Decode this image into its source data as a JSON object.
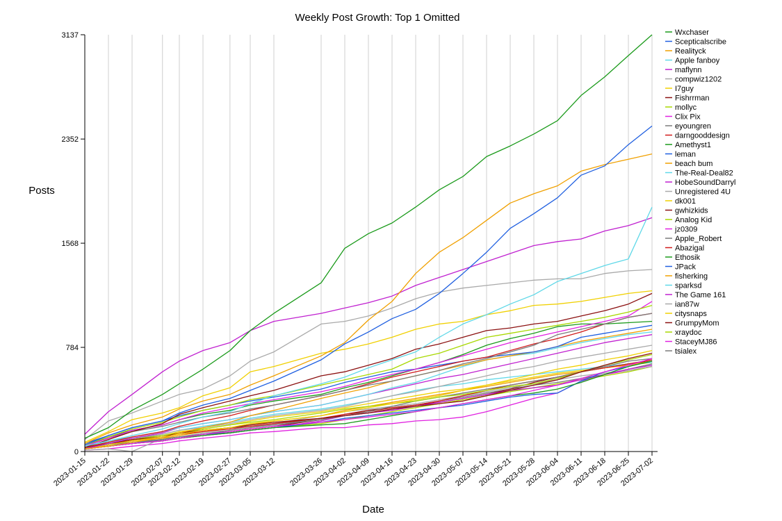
{
  "chart_data": {
    "type": "line",
    "title": "Weekly Post Growth: Top 1 Omitted",
    "xlabel": "Date",
    "ylabel": "Posts",
    "ylim": [
      0,
      3137
    ],
    "yticks": [
      0,
      784,
      1568,
      2352,
      3137
    ],
    "x": [
      "2023-01-15",
      "2023-01-22",
      "2023-01-29",
      "2023-02-07",
      "2023-02-12",
      "2023-02-19",
      "2023-02-27",
      "2023-03-05",
      "2023-03-12",
      "2023-03-26",
      "2023-04-02",
      "2023-04-09",
      "2023-04-16",
      "2023-04-23",
      "2023-04-30",
      "2023-05-07",
      "2023-05-14",
      "2023-05-21",
      "2023-05-28",
      "2023-06-04",
      "2023-06-11",
      "2023-06-18",
      "2023-06-25",
      "2023-07-02"
    ],
    "grid": "vertical",
    "legend_position": "right",
    "series": [
      {
        "name": "Wxchaser",
        "color": "#1a9a1a",
        "values": [
          100,
          180,
          310,
          430,
          510,
          620,
          760,
          910,
          1040,
          1270,
          1530,
          1640,
          1720,
          1840,
          1970,
          2070,
          2220,
          2300,
          2390,
          2490,
          2680,
          2820,
          2980,
          3137
        ]
      },
      {
        "name": "Scepticalscribe",
        "color": "#1f5fe0",
        "values": [
          50,
          120,
          180,
          230,
          290,
          350,
          400,
          460,
          530,
          690,
          810,
          900,
          1000,
          1070,
          1190,
          1340,
          1500,
          1680,
          1790,
          1910,
          2080,
          2150,
          2310,
          2450
        ]
      },
      {
        "name": "Realityck",
        "color": "#f0a000",
        "values": [
          60,
          140,
          200,
          260,
          320,
          380,
          430,
          500,
          570,
          720,
          820,
          990,
          1130,
          1340,
          1500,
          1610,
          1740,
          1870,
          1940,
          2000,
          2110,
          2160,
          2200,
          2240
        ]
      },
      {
        "name": "Apple fanboy",
        "color": "#5fd8e8",
        "values": [
          40,
          80,
          120,
          170,
          210,
          260,
          300,
          360,
          420,
          510,
          560,
          630,
          690,
          750,
          860,
          960,
          1030,
          1110,
          1180,
          1280,
          1340,
          1400,
          1450,
          1840
        ]
      },
      {
        "name": "maflynn",
        "color": "#c020d0",
        "values": [
          130,
          300,
          430,
          600,
          680,
          760,
          820,
          910,
          980,
          1040,
          1080,
          1120,
          1170,
          1250,
          1310,
          1370,
          1430,
          1490,
          1550,
          1580,
          1600,
          1660,
          1700,
          1760
        ]
      },
      {
        "name": "compwiz1202",
        "color": "#a9a9a9",
        "values": [
          90,
          230,
          290,
          380,
          430,
          470,
          570,
          680,
          750,
          960,
          980,
          1020,
          1080,
          1150,
          1200,
          1230,
          1250,
          1270,
          1290,
          1300,
          1300,
          1340,
          1360,
          1370
        ]
      },
      {
        "name": "I7guy",
        "color": "#f0d000",
        "values": [
          70,
          150,
          240,
          290,
          330,
          420,
          480,
          600,
          640,
          740,
          770,
          810,
          860,
          920,
          960,
          980,
          1030,
          1060,
          1100,
          1110,
          1130,
          1160,
          1190,
          1210
        ]
      },
      {
        "name": "Fishrrman",
        "color": "#8b1010",
        "values": [
          30,
          90,
          150,
          210,
          280,
          330,
          380,
          420,
          460,
          570,
          600,
          650,
          700,
          770,
          810,
          860,
          910,
          930,
          960,
          980,
          1020,
          1060,
          1110,
          1190
        ]
      },
      {
        "name": "mollyc",
        "color": "#a8d800",
        "values": [
          50,
          110,
          170,
          220,
          260,
          310,
          350,
          390,
          420,
          500,
          540,
          580,
          620,
          700,
          740,
          800,
          860,
          890,
          920,
          950,
          980,
          1010,
          1050,
          1100
        ]
      },
      {
        "name": "Clix Pix",
        "color": "#e020e0",
        "values": [
          40,
          100,
          160,
          200,
          240,
          290,
          330,
          360,
          390,
          450,
          490,
          540,
          580,
          620,
          670,
          720,
          770,
          820,
          860,
          900,
          940,
          980,
          1020,
          1130
        ]
      },
      {
        "name": "eyoungren",
        "color": "#7a7a7a",
        "values": [
          50,
          100,
          150,
          190,
          220,
          260,
          290,
          320,
          350,
          420,
          460,
          500,
          530,
          570,
          610,
          660,
          700,
          750,
          800,
          880,
          920,
          960,
          1010,
          1040
        ]
      },
      {
        "name": "darngooddesign",
        "color": "#d01a1a",
        "values": [
          30,
          70,
          110,
          150,
          190,
          230,
          270,
          310,
          350,
          420,
          460,
          510,
          560,
          600,
          640,
          680,
          710,
          760,
          810,
          850,
          900,
          960,
          1010,
          1040
        ]
      },
      {
        "name": "Amethyst1",
        "color": "#1a9a1a",
        "values": [
          50,
          110,
          160,
          200,
          240,
          280,
          310,
          350,
          380,
          430,
          480,
          520,
          570,
          620,
          670,
          730,
          800,
          850,
          890,
          940,
          960,
          960,
          970,
          980
        ]
      },
      {
        "name": "leman",
        "color": "#1f5fe0",
        "values": [
          60,
          120,
          180,
          230,
          270,
          310,
          350,
          380,
          410,
          470,
          520,
          560,
          600,
          620,
          650,
          680,
          710,
          730,
          750,
          790,
          860,
          890,
          920,
          950
        ]
      },
      {
        "name": "beach bum",
        "color": "#f0a000",
        "values": [
          20,
          40,
          70,
          100,
          140,
          180,
          220,
          270,
          310,
          400,
          440,
          480,
          530,
          570,
          610,
          650,
          690,
          720,
          750,
          790,
          830,
          860,
          890,
          920
        ]
      },
      {
        "name": "The-Real-Deal82",
        "color": "#5fd8e8",
        "values": [
          40,
          80,
          110,
          150,
          180,
          210,
          240,
          270,
          300,
          350,
          390,
          430,
          480,
          520,
          580,
          640,
          690,
          720,
          740,
          780,
          820,
          850,
          880,
          900
        ]
      },
      {
        "name": "HobeSoundDarryl",
        "color": "#c020d0",
        "values": [
          20,
          60,
          100,
          140,
          180,
          210,
          240,
          270,
          300,
          350,
          390,
          430,
          470,
          510,
          550,
          580,
          620,
          660,
          700,
          740,
          780,
          820,
          850,
          880
        ]
      },
      {
        "name": "Unregistered 4U",
        "color": "#a9a9a9",
        "values": [
          30,
          70,
          100,
          130,
          160,
          180,
          210,
          240,
          270,
          310,
          340,
          380,
          420,
          450,
          490,
          530,
          570,
          610,
          640,
          680,
          710,
          740,
          770,
          800
        ]
      },
      {
        "name": "dk001",
        "color": "#f0d000",
        "values": [
          20,
          50,
          80,
          110,
          130,
          160,
          180,
          210,
          230,
          270,
          300,
          330,
          360,
          390,
          420,
          460,
          500,
          540,
          580,
          620,
          650,
          690,
          720,
          760
        ]
      },
      {
        "name": "gwhizkids",
        "color": "#8b1010",
        "values": [
          30,
          60,
          90,
          110,
          140,
          160,
          180,
          200,
          220,
          250,
          270,
          290,
          320,
          340,
          360,
          380,
          420,
          460,
          500,
          540,
          600,
          650,
          700,
          740
        ]
      },
      {
        "name": "Analog Kid",
        "color": "#a8d800",
        "values": [
          30,
          60,
          90,
          120,
          140,
          170,
          200,
          220,
          240,
          290,
          320,
          340,
          360,
          380,
          410,
          430,
          460,
          490,
          510,
          550,
          600,
          650,
          690,
          730
        ]
      },
      {
        "name": "jz0309",
        "color": "#e020e0",
        "values": [
          20,
          40,
          60,
          80,
          100,
          130,
          150,
          170,
          190,
          220,
          240,
          260,
          280,
          300,
          330,
          360,
          390,
          420,
          460,
          500,
          550,
          600,
          650,
          700
        ]
      },
      {
        "name": "Apple_Robert",
        "color": "#7a7a7a",
        "values": [
          20,
          40,
          60,
          90,
          110,
          130,
          160,
          180,
          200,
          240,
          270,
          300,
          340,
          380,
          410,
          440,
          470,
          500,
          530,
          560,
          600,
          640,
          680,
          700
        ]
      },
      {
        "name": "Abazigal",
        "color": "#d01a1a",
        "values": [
          30,
          60,
          80,
          110,
          130,
          150,
          170,
          190,
          210,
          250,
          280,
          300,
          330,
          350,
          380,
          420,
          460,
          500,
          530,
          560,
          600,
          630,
          660,
          690
        ]
      },
      {
        "name": "Ethosik",
        "color": "#1a9a1a",
        "values": [
          20,
          40,
          60,
          80,
          100,
          120,
          140,
          160,
          180,
          200,
          210,
          240,
          270,
          300,
          330,
          360,
          390,
          420,
          440,
          470,
          520,
          580,
          640,
          680
        ]
      },
      {
        "name": "JPack",
        "color": "#1f5fe0",
        "values": [
          30,
          50,
          70,
          90,
          110,
          130,
          140,
          160,
          180,
          220,
          250,
          270,
          290,
          310,
          330,
          350,
          380,
          410,
          430,
          440,
          530,
          600,
          640,
          680
        ]
      },
      {
        "name": "fisherking",
        "color": "#f0a000",
        "values": [
          20,
          50,
          80,
          100,
          120,
          150,
          180,
          200,
          230,
          270,
          310,
          340,
          370,
          400,
          430,
          460,
          490,
          520,
          550,
          580,
          600,
          630,
          650,
          680
        ]
      },
      {
        "name": "sparksd",
        "color": "#5fd8e8",
        "values": [
          40,
          70,
          100,
          130,
          160,
          190,
          220,
          250,
          280,
          320,
          350,
          380,
          420,
          460,
          490,
          510,
          540,
          560,
          580,
          600,
          620,
          640,
          660,
          670
        ]
      },
      {
        "name": "The Game 161",
        "color": "#c020d0",
        "values": [
          20,
          40,
          60,
          80,
          100,
          120,
          140,
          160,
          180,
          230,
          270,
          290,
          310,
          340,
          370,
          400,
          430,
          460,
          480,
          500,
          540,
          580,
          620,
          650
        ]
      },
      {
        "name": "ian87w",
        "color": "#a9a9a9",
        "values": [
          10,
          20,
          0,
          100,
          110,
          140,
          160,
          180,
          210,
          270,
          300,
          320,
          340,
          360,
          390,
          420,
          450,
          480,
          510,
          540,
          570,
          590,
          610,
          640
        ]
      },
      {
        "name": "citysnaps",
        "color": "#f0d000",
        "values": [
          30,
          60,
          90,
          120,
          150,
          170,
          200,
          230,
          260,
          300,
          330,
          360,
          390,
          420,
          450,
          470,
          500,
          530,
          560,
          590,
          610,
          630,
          650,
          670
        ]
      },
      {
        "name": "GrumpyMom",
        "color": "#8b1010",
        "values": [
          20,
          40,
          60,
          90,
          110,
          130,
          150,
          170,
          190,
          240,
          280,
          310,
          330,
          350,
          370,
          400,
          430,
          470,
          520,
          560,
          600,
          630,
          660,
          680
        ]
      },
      {
        "name": "xraydoc",
        "color": "#a8d800",
        "values": [
          20,
          40,
          60,
          80,
          100,
          120,
          140,
          160,
          180,
          210,
          240,
          270,
          300,
          330,
          360,
          390,
          420,
          450,
          480,
          510,
          540,
          570,
          600,
          640
        ]
      },
      {
        "name": "StaceyMJ86",
        "color": "#e020e0",
        "values": [
          10,
          20,
          40,
          60,
          80,
          100,
          120,
          140,
          150,
          180,
          180,
          200,
          210,
          230,
          240,
          260,
          300,
          350,
          400,
          440,
          530,
          580,
          610,
          640
        ]
      },
      {
        "name": "tsialex",
        "color": "#7a7a7a",
        "values": [
          40,
          70,
          100,
          120,
          140,
          160,
          180,
          190,
          210,
          240,
          270,
          290,
          320,
          350,
          380,
          410,
          440,
          470,
          500,
          520,
          550,
          580,
          620,
          660
        ]
      }
    ]
  }
}
